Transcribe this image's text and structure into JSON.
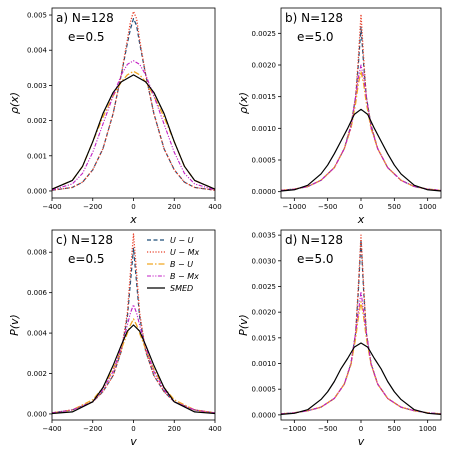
{
  "chart_data": [
    {
      "type": "line",
      "panel_label": "a) N=128",
      "e_label": "e=0.5",
      "xlabel": "x",
      "ylabel": "ρ(x)",
      "xlim": [
        -400,
        400
      ],
      "ylim": [
        -0.0002,
        0.0052
      ],
      "xticks": [
        -400,
        -200,
        0,
        200,
        400
      ],
      "yticks": [
        0.0,
        0.001,
        0.002,
        0.003,
        0.004,
        0.005
      ],
      "ytick_labels": [
        "0.000",
        "0.001",
        "0.002",
        "0.003",
        "0.004",
        "0.005"
      ],
      "series": [
        {
          "key": "UU",
          "x": [
            -400,
            -300,
            -250,
            -200,
            -150,
            -100,
            -60,
            -30,
            -15,
            0,
            15,
            30,
            60,
            100,
            150,
            200,
            250,
            300,
            400
          ],
          "y": [
            2e-05,
            0.0001,
            0.00025,
            0.0006,
            0.0012,
            0.0022,
            0.0033,
            0.0042,
            0.0046,
            0.0049,
            0.0047,
            0.0042,
            0.0033,
            0.0022,
            0.0012,
            0.0006,
            0.00025,
            0.0001,
            2e-05
          ]
        },
        {
          "key": "UMx",
          "x": [
            -400,
            -300,
            -250,
            -200,
            -150,
            -100,
            -60,
            -30,
            -15,
            0,
            15,
            30,
            60,
            100,
            150,
            200,
            250,
            300,
            400
          ],
          "y": [
            2e-05,
            0.0001,
            0.00025,
            0.0006,
            0.0012,
            0.0022,
            0.0033,
            0.0043,
            0.0048,
            0.0051,
            0.0049,
            0.0043,
            0.0033,
            0.0022,
            0.0012,
            0.0006,
            0.00025,
            0.0001,
            2e-05
          ]
        },
        {
          "key": "BU",
          "x": [
            -400,
            -300,
            -250,
            -200,
            -150,
            -100,
            -60,
            -30,
            0,
            30,
            60,
            100,
            150,
            200,
            250,
            300,
            400
          ],
          "y": [
            5e-05,
            0.0003,
            0.0007,
            0.0014,
            0.0021,
            0.0027,
            0.0031,
            0.0033,
            0.0034,
            0.0033,
            0.0031,
            0.0027,
            0.0021,
            0.0014,
            0.0007,
            0.0003,
            5e-05
          ]
        },
        {
          "key": "BMx",
          "x": [
            -400,
            -300,
            -250,
            -200,
            -150,
            -100,
            -60,
            -30,
            0,
            30,
            60,
            100,
            150,
            200,
            250,
            300,
            400
          ],
          "y": [
            3e-05,
            0.0002,
            0.0005,
            0.0011,
            0.0019,
            0.0027,
            0.0033,
            0.0036,
            0.0037,
            0.0036,
            0.0033,
            0.0027,
            0.0019,
            0.0011,
            0.0005,
            0.0002,
            3e-05
          ]
        },
        {
          "key": "SMED",
          "x": [
            -400,
            -300,
            -250,
            -200,
            -150,
            -100,
            -60,
            -30,
            0,
            30,
            60,
            100,
            150,
            200,
            250,
            300,
            400
          ],
          "y": [
            5e-05,
            0.0003,
            0.0007,
            0.0014,
            0.0022,
            0.0028,
            0.0031,
            0.0032,
            0.0033,
            0.0032,
            0.0031,
            0.0028,
            0.0022,
            0.0014,
            0.0007,
            0.0003,
            5e-05
          ]
        }
      ]
    },
    {
      "type": "line",
      "panel_label": "b) N=128",
      "e_label": "e=5.0",
      "xlabel": "x",
      "ylabel": "ρ(x)",
      "xlim": [
        -1200,
        1200
      ],
      "ylim": [
        -0.0001,
        0.0029
      ],
      "xticks": [
        -1000,
        -500,
        0,
        500,
        1000
      ],
      "yticks": [
        0.0,
        0.0005,
        0.001,
        0.0015,
        0.002,
        0.0025
      ],
      "ytick_labels": [
        "0.0000",
        "0.0005",
        "0.0010",
        "0.0015",
        "0.0020",
        "0.0025"
      ],
      "series": [
        {
          "key": "UU",
          "x": [
            -1200,
            -1000,
            -800,
            -600,
            -400,
            -250,
            -150,
            -80,
            -40,
            0,
            40,
            80,
            150,
            250,
            400,
            600,
            800,
            1000,
            1200
          ],
          "y": [
            2e-05,
            4e-05,
            8e-05,
            0.00018,
            0.00038,
            0.00068,
            0.00105,
            0.0015,
            0.002,
            0.0026,
            0.002,
            0.0015,
            0.00105,
            0.00068,
            0.00038,
            0.00018,
            8e-05,
            4e-05,
            2e-05
          ]
        },
        {
          "key": "UMx",
          "x": [
            -1200,
            -1000,
            -800,
            -600,
            -400,
            -250,
            -150,
            -80,
            -40,
            0,
            40,
            80,
            150,
            250,
            400,
            600,
            800,
            1000,
            1200
          ],
          "y": [
            2e-05,
            4e-05,
            8e-05,
            0.00018,
            0.00038,
            0.00068,
            0.00105,
            0.0015,
            0.0021,
            0.0028,
            0.0021,
            0.0015,
            0.00105,
            0.00068,
            0.00038,
            0.00018,
            8e-05,
            4e-05,
            2e-05
          ]
        },
        {
          "key": "BU",
          "x": [
            -1200,
            -1000,
            -800,
            -600,
            -400,
            -250,
            -150,
            -80,
            -40,
            0,
            40,
            80,
            150,
            250,
            400,
            600,
            800,
            1000,
            1200
          ],
          "y": [
            2e-05,
            4e-05,
            8e-05,
            0.00018,
            0.00038,
            0.00068,
            0.001,
            0.0014,
            0.0017,
            0.0019,
            0.0017,
            0.0014,
            0.001,
            0.00068,
            0.00038,
            0.00018,
            8e-05,
            4e-05,
            2e-05
          ]
        },
        {
          "key": "BMx",
          "x": [
            -1200,
            -1000,
            -800,
            -600,
            -400,
            -250,
            -150,
            -80,
            -40,
            0,
            40,
            80,
            150,
            250,
            400,
            600,
            800,
            1000,
            1200
          ],
          "y": [
            2e-05,
            4e-05,
            8e-05,
            0.00018,
            0.00038,
            0.00068,
            0.00102,
            0.0015,
            0.0018,
            0.002,
            0.0018,
            0.0015,
            0.00102,
            0.00068,
            0.00038,
            0.00018,
            8e-05,
            4e-05,
            2e-05
          ]
        },
        {
          "key": "SMED",
          "x": [
            -1200,
            -1000,
            -800,
            -600,
            -500,
            -400,
            -300,
            -200,
            -100,
            0,
            100,
            200,
            300,
            400,
            500,
            600,
            800,
            1000,
            1200
          ],
          "y": [
            1e-05,
            3e-05,
            0.0001,
            0.00028,
            0.00042,
            0.0006,
            0.0008,
            0.001,
            0.00122,
            0.0013,
            0.00122,
            0.001,
            0.0008,
            0.0006,
            0.00042,
            0.00028,
            0.0001,
            3e-05,
            1e-05
          ]
        }
      ]
    },
    {
      "type": "line",
      "panel_label": "c) N=128",
      "e_label": "e=0.5",
      "xlabel": "v",
      "ylabel": "P(v)",
      "xlim": [
        -400,
        400
      ],
      "ylim": [
        -0.0003,
        0.0091
      ],
      "xticks": [
        -400,
        -200,
        0,
        200,
        400
      ],
      "yticks": [
        0.0,
        0.002,
        0.004,
        0.006,
        0.008
      ],
      "ytick_labels": [
        "0.000",
        "0.002",
        "0.004",
        "0.006",
        "0.008"
      ],
      "legend": [
        "U − U",
        "U − Mx",
        "B − U",
        "B − Mx",
        "SMED"
      ],
      "series": [
        {
          "key": "UU",
          "x": [
            -400,
            -300,
            -200,
            -150,
            -100,
            -60,
            -30,
            -15,
            0,
            15,
            30,
            60,
            100,
            150,
            200,
            300,
            400
          ],
          "y": [
            5e-05,
            0.0002,
            0.0006,
            0.0011,
            0.0019,
            0.0031,
            0.0048,
            0.0065,
            0.0082,
            0.0065,
            0.0048,
            0.0031,
            0.0019,
            0.0011,
            0.0006,
            0.0002,
            5e-05
          ]
        },
        {
          "key": "UMx",
          "x": [
            -400,
            -300,
            -200,
            -150,
            -100,
            -60,
            -30,
            -15,
            0,
            15,
            30,
            60,
            100,
            150,
            200,
            300,
            400
          ],
          "y": [
            5e-05,
            0.0002,
            0.0006,
            0.0011,
            0.0019,
            0.0031,
            0.005,
            0.007,
            0.0089,
            0.007,
            0.005,
            0.0031,
            0.0019,
            0.0011,
            0.0006,
            0.0002,
            5e-05
          ]
        },
        {
          "key": "BU",
          "x": [
            -400,
            -300,
            -200,
            -150,
            -100,
            -60,
            -30,
            -15,
            0,
            15,
            30,
            60,
            100,
            150,
            200,
            300,
            400
          ],
          "y": [
            5e-05,
            0.0002,
            0.0007,
            0.0013,
            0.0022,
            0.0032,
            0.004,
            0.0044,
            0.0047,
            0.0044,
            0.004,
            0.0032,
            0.0022,
            0.0013,
            0.0007,
            0.0002,
            5e-05
          ]
        },
        {
          "key": "BMx",
          "x": [
            -400,
            -300,
            -200,
            -150,
            -100,
            -60,
            -30,
            -15,
            0,
            15,
            30,
            60,
            100,
            150,
            200,
            300,
            400
          ],
          "y": [
            5e-05,
            0.0002,
            0.0006,
            0.0012,
            0.0021,
            0.0033,
            0.0044,
            0.005,
            0.0054,
            0.005,
            0.0044,
            0.0033,
            0.0021,
            0.0012,
            0.0006,
            0.0002,
            5e-05
          ]
        },
        {
          "key": "SMED",
          "x": [
            -400,
            -300,
            -200,
            -150,
            -100,
            -60,
            -30,
            0,
            30,
            60,
            100,
            150,
            200,
            300,
            400
          ],
          "y": [
            2e-05,
            0.0001,
            0.0006,
            0.0013,
            0.0024,
            0.0034,
            0.0041,
            0.0044,
            0.0041,
            0.0034,
            0.0024,
            0.0013,
            0.0006,
            0.0001,
            2e-05
          ]
        }
      ]
    },
    {
      "type": "line",
      "panel_label": "d) N=128",
      "e_label": "e=5.0",
      "xlabel": "v",
      "ylabel": "P(v)",
      "xlim": [
        -1200,
        1200
      ],
      "ylim": [
        -0.0001,
        0.0036
      ],
      "xticks": [
        -1000,
        -500,
        0,
        500,
        1000
      ],
      "yticks": [
        0.0,
        0.0005,
        0.001,
        0.0015,
        0.002,
        0.0025,
        0.003,
        0.0035
      ],
      "ytick_labels": [
        "0.0000",
        "0.0005",
        "0.0010",
        "0.0015",
        "0.0020",
        "0.0025",
        "0.0030",
        "0.0035"
      ],
      "series": [
        {
          "key": "UU",
          "x": [
            -1200,
            -1000,
            -800,
            -600,
            -400,
            -250,
            -150,
            -80,
            -40,
            0,
            40,
            80,
            150,
            250,
            400,
            600,
            800,
            1000,
            1200
          ],
          "y": [
            2e-05,
            4e-05,
            8e-05,
            0.00015,
            0.00032,
            0.0006,
            0.001,
            0.0016,
            0.0024,
            0.0034,
            0.0024,
            0.0016,
            0.001,
            0.0006,
            0.00032,
            0.00015,
            8e-05,
            4e-05,
            2e-05
          ]
        },
        {
          "key": "UMx",
          "x": [
            -1200,
            -1000,
            -800,
            -600,
            -400,
            -250,
            -150,
            -80,
            -40,
            0,
            40,
            80,
            150,
            250,
            400,
            600,
            800,
            1000,
            1200
          ],
          "y": [
            2e-05,
            4e-05,
            8e-05,
            0.00015,
            0.00032,
            0.0006,
            0.001,
            0.0016,
            0.0025,
            0.0035,
            0.0025,
            0.0016,
            0.001,
            0.0006,
            0.00032,
            0.00015,
            8e-05,
            4e-05,
            2e-05
          ]
        },
        {
          "key": "BU",
          "x": [
            -1200,
            -1000,
            -800,
            -600,
            -400,
            -250,
            -150,
            -80,
            -40,
            0,
            40,
            80,
            150,
            250,
            400,
            600,
            800,
            1000,
            1200
          ],
          "y": [
            2e-05,
            4e-05,
            8e-05,
            0.00015,
            0.00032,
            0.0006,
            0.00098,
            0.0015,
            0.0019,
            0.0022,
            0.0019,
            0.0015,
            0.00098,
            0.0006,
            0.00032,
            0.00015,
            8e-05,
            4e-05,
            2e-05
          ]
        },
        {
          "key": "BMx",
          "x": [
            -1200,
            -1000,
            -800,
            -600,
            -400,
            -250,
            -150,
            -80,
            -40,
            0,
            40,
            80,
            150,
            250,
            400,
            600,
            800,
            1000,
            1200
          ],
          "y": [
            2e-05,
            4e-05,
            8e-05,
            0.00015,
            0.00032,
            0.0006,
            0.001,
            0.0016,
            0.002,
            0.0024,
            0.002,
            0.0016,
            0.001,
            0.0006,
            0.00032,
            0.00015,
            8e-05,
            4e-05,
            2e-05
          ]
        },
        {
          "key": "SMED",
          "x": [
            -1200,
            -1000,
            -800,
            -600,
            -500,
            -400,
            -300,
            -200,
            -100,
            0,
            100,
            200,
            300,
            400,
            500,
            600,
            800,
            1000,
            1200
          ],
          "y": [
            1e-05,
            3e-05,
            0.0001,
            0.0003,
            0.00045,
            0.00065,
            0.0009,
            0.0011,
            0.00132,
            0.0014,
            0.00132,
            0.0011,
            0.0009,
            0.00065,
            0.00045,
            0.0003,
            0.0001,
            3e-05,
            1e-05
          ]
        }
      ]
    }
  ],
  "series_styles": {
    "UU": {
      "color": "#1f4e79",
      "dash": "4,2.5",
      "width": 1.2
    },
    "UMx": {
      "color": "#e8412b",
      "dash": "1.2,1.6",
      "width": 1.3
    },
    "BU": {
      "color": "#f0a623",
      "dash": "6,2,1.5,2",
      "width": 1.3
    },
    "BMx": {
      "color": "#c21fc4",
      "dash": "4,1.5,1.2,1.5,1.2,1.5",
      "width": 1.1
    },
    "SMED": {
      "color": "#000000",
      "dash": "",
      "width": 1.2
    }
  }
}
